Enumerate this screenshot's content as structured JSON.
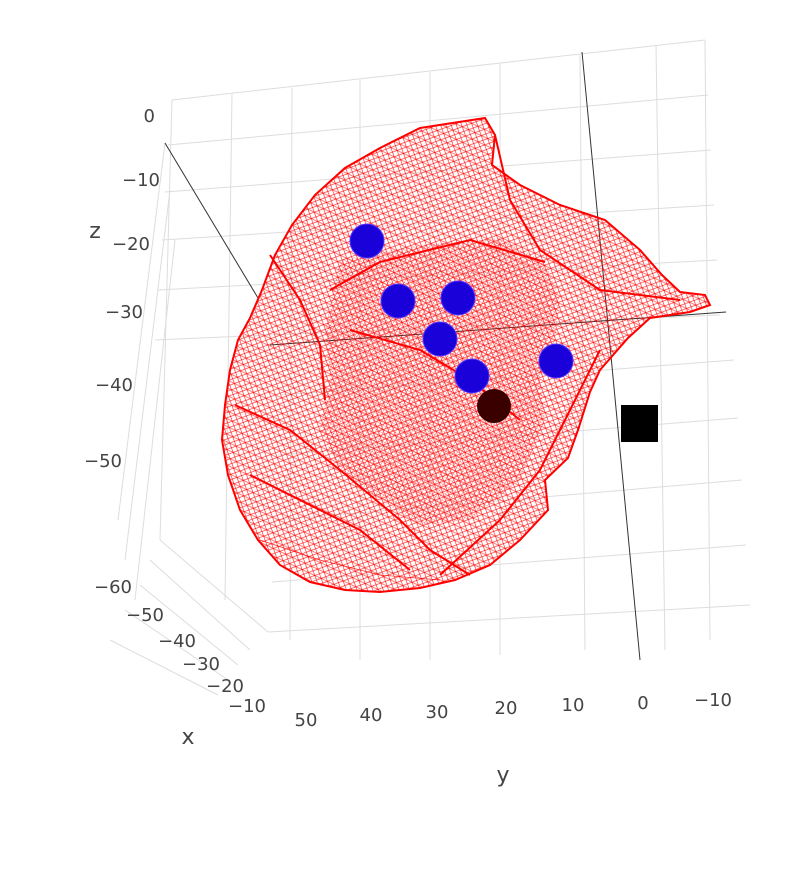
{
  "chart_data": {
    "type": "scatter3d",
    "title": "",
    "colors": {
      "mesh": "#ff0000",
      "sphere": "#1a00d9",
      "dark_sphere": "#3a0000",
      "marker": "#000000",
      "grid": "#dddddd",
      "axis_text": "#444444"
    },
    "axes": {
      "x": {
        "title": "x",
        "ticks": [
          "−10",
          "−20",
          "−30",
          "−40",
          "−50",
          "−60"
        ]
      },
      "y": {
        "title": "y",
        "ticks": [
          "50",
          "40",
          "30",
          "20",
          "10",
          "0",
          "−10"
        ]
      },
      "z": {
        "title": "z",
        "ticks": [
          "0",
          "−10",
          "−20",
          "−30",
          "−40",
          "−50"
        ]
      }
    },
    "mesh": {
      "name": "surface mesh",
      "shape": "irregular closed surface",
      "render": "wireframe"
    },
    "points": [
      {
        "name": "sphere-1",
        "kind": "sphere",
        "color": "sphere"
      },
      {
        "name": "sphere-2",
        "kind": "sphere",
        "color": "sphere"
      },
      {
        "name": "sphere-3",
        "kind": "sphere",
        "color": "sphere"
      },
      {
        "name": "sphere-4",
        "kind": "sphere",
        "color": "sphere"
      },
      {
        "name": "sphere-5",
        "kind": "sphere",
        "color": "sphere"
      },
      {
        "name": "sphere-6",
        "kind": "sphere",
        "color": "sphere"
      },
      {
        "name": "sphere-dark",
        "kind": "sphere",
        "color": "dark_sphere"
      },
      {
        "name": "square-marker",
        "kind": "square",
        "color": "marker"
      }
    ]
  }
}
